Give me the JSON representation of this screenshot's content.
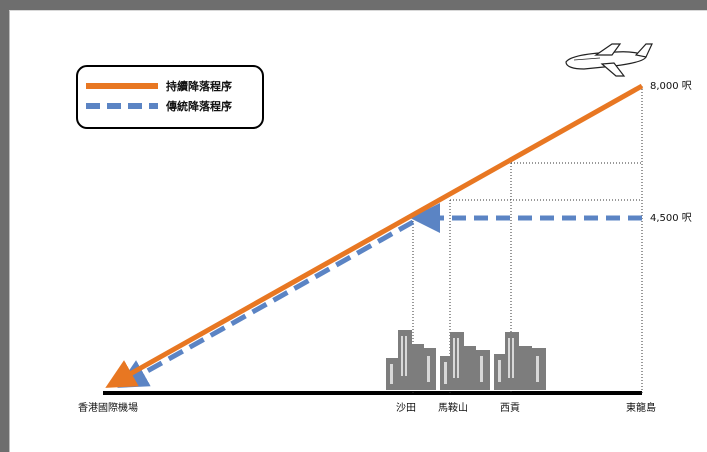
{
  "legend": {
    "continuous": "持續降落程序",
    "traditional": "傳統降落程序"
  },
  "altitudes": {
    "high": "8,000 呎",
    "low": "4,500 呎"
  },
  "places": {
    "airport": "香港國際機場",
    "shatin": "沙田",
    "maonshan": "馬鞍山",
    "saikung": "西貢",
    "tunglung": "東龍島"
  },
  "colors": {
    "continuous": "#e87722",
    "traditional": "#5b84c4",
    "buildings": "#7d7d7d"
  }
}
